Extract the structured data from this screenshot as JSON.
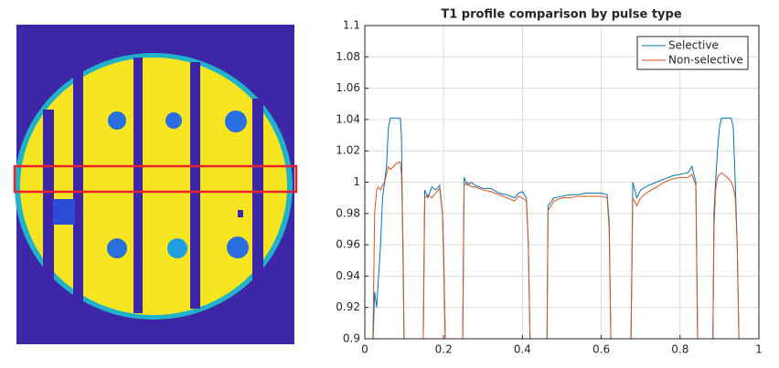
{
  "chart_data": {
    "type": "line",
    "title": "T1 profile comparison by pulse type",
    "x": [
      0.02,
      0.025,
      0.03,
      0.035,
      0.04,
      0.045,
      0.05,
      0.055,
      0.06,
      0.065,
      0.08,
      0.09,
      0.093,
      0.097,
      0.1,
      0.148,
      0.152,
      0.16,
      0.17,
      0.18,
      0.19,
      0.197,
      0.2,
      0.205,
      0.248,
      0.252,
      0.26,
      0.27,
      0.28,
      0.3,
      0.32,
      0.34,
      0.36,
      0.38,
      0.39,
      0.4,
      0.41,
      0.415,
      0.42,
      0.462,
      0.465,
      0.48,
      0.5,
      0.52,
      0.54,
      0.56,
      0.58,
      0.6,
      0.615,
      0.62,
      0.625,
      0.675,
      0.68,
      0.69,
      0.7,
      0.72,
      0.74,
      0.76,
      0.78,
      0.8,
      0.82,
      0.83,
      0.84,
      0.845,
      0.883,
      0.886,
      0.89,
      0.895,
      0.9,
      0.905,
      0.92,
      0.93,
      0.935,
      0.94,
      0.945,
      0.95
    ],
    "series": [
      {
        "name": "Selective",
        "color": "#0072bd",
        "values": [
          0.89,
          0.93,
          0.92,
          0.94,
          0.96,
          0.99,
          1.0,
          1.01,
          1.035,
          1.041,
          1.041,
          1.041,
          1.03,
          0.95,
          0.89,
          0.89,
          0.995,
          0.99,
          0.997,
          0.995,
          0.998,
          0.98,
          0.955,
          0.89,
          0.89,
          1.003,
          0.998,
          1.0,
          0.998,
          0.996,
          0.996,
          0.993,
          0.992,
          0.99,
          0.993,
          0.994,
          0.99,
          0.96,
          0.89,
          0.89,
          0.985,
          0.99,
          0.991,
          0.992,
          0.992,
          0.993,
          0.993,
          0.993,
          0.992,
          0.975,
          0.89,
          0.89,
          1.0,
          0.99,
          0.995,
          0.998,
          1.0,
          1.002,
          1.004,
          1.005,
          1.006,
          1.01,
          1.0,
          0.89,
          0.89,
          0.98,
          1.0,
          1.02,
          1.035,
          1.041,
          1.041,
          1.041,
          1.035,
          1.0,
          0.96,
          0.89
        ]
      },
      {
        "name": "Non-selective",
        "color": "#d95319",
        "values": [
          0.89,
          0.98,
          0.995,
          0.997,
          0.995,
          0.998,
          1.0,
          1.005,
          1.01,
          1.008,
          1.012,
          1.013,
          1.005,
          0.96,
          0.89,
          0.89,
          0.99,
          0.992,
          0.99,
          0.993,
          0.996,
          0.98,
          0.95,
          0.89,
          0.89,
          0.998,
          1.0,
          0.997,
          0.997,
          0.995,
          0.994,
          0.992,
          0.99,
          0.988,
          0.991,
          0.99,
          0.988,
          0.96,
          0.89,
          0.89,
          0.982,
          0.988,
          0.99,
          0.99,
          0.991,
          0.991,
          0.991,
          0.991,
          0.99,
          0.97,
          0.89,
          0.89,
          0.99,
          0.985,
          0.99,
          0.994,
          0.997,
          1.0,
          1.002,
          1.003,
          1.003,
          1.005,
          0.998,
          0.89,
          0.89,
          0.97,
          0.995,
          1.003,
          1.005,
          1.006,
          1.003,
          1.0,
          0.997,
          0.99,
          0.96,
          0.89
        ]
      }
    ],
    "xlim": [
      0,
      1
    ],
    "xticks": [
      0,
      0.2,
      0.4,
      0.6,
      0.8,
      1
    ],
    "ylim": [
      0.9,
      1.1
    ],
    "yticks": [
      0.9,
      0.92,
      0.94,
      0.96,
      0.98,
      1,
      1.02,
      1.04,
      1.06,
      1.08,
      1.1
    ],
    "grid": true,
    "legend": "northeast"
  }
}
